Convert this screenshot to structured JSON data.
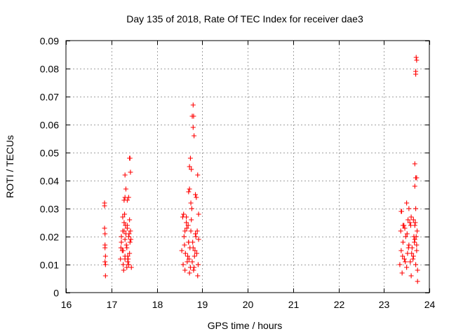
{
  "chart_data": {
    "type": "scatter",
    "title": "Day 135 of 2018, Rate Of TEC Index for receiver dae3",
    "xlabel": "GPS time / hours",
    "ylabel": "ROTI / TECUs",
    "xlim": [
      16,
      24
    ],
    "ylim": [
      0,
      0.09
    ],
    "xticks": [
      16,
      17,
      18,
      19,
      20,
      21,
      22,
      23,
      24
    ],
    "yticks": [
      0,
      0.01,
      0.02,
      0.03,
      0.04,
      0.05,
      0.06,
      0.07,
      0.08,
      0.09
    ],
    "ytick_labels": [
      "0",
      "0.01",
      "0.02",
      "0.03",
      "0.04",
      "0.05",
      "0.06",
      "0.07",
      "0.08",
      "0.09"
    ],
    "grid": true,
    "marker": "+",
    "color": "#ff0000",
    "series": [
      {
        "x": [
          16.85,
          16.85,
          16.85,
          16.86,
          16.86,
          16.86,
          16.86,
          16.87,
          16.87,
          16.87,
          17.2,
          17.22,
          17.24,
          17.25,
          17.26,
          17.28,
          17.3,
          17.3,
          17.32,
          17.34,
          17.35,
          17.36,
          17.38,
          17.4,
          17.41,
          17.42,
          17.44,
          17.25,
          17.27,
          17.3,
          17.33,
          17.35,
          17.38,
          17.4,
          17.22,
          17.26,
          17.31,
          17.36,
          17.43,
          17.29,
          17.34,
          17.39,
          17.21,
          17.28,
          17.37,
          17.28,
          17.3,
          17.32,
          17.35,
          17.38,
          17.4,
          17.41,
          17.42,
          17.3,
          17.29,
          18.55,
          18.58,
          18.6,
          18.62,
          18.65,
          18.68,
          18.7,
          18.72,
          18.75,
          18.78,
          18.8,
          18.82,
          18.85,
          18.88,
          18.9,
          18.92,
          18.57,
          18.61,
          18.66,
          18.71,
          18.76,
          18.81,
          18.86,
          18.91,
          18.63,
          18.69,
          18.74,
          18.79,
          18.84,
          18.89,
          18.59,
          18.67,
          18.73,
          18.83,
          18.7,
          18.72,
          18.74,
          18.76,
          18.78,
          18.8,
          18.8,
          18.82,
          18.81,
          18.72,
          18.75,
          18.77,
          18.85,
          18.87,
          18.9,
          18.92,
          18.62,
          18.65,
          18.7,
          23.35,
          23.38,
          23.4,
          23.42,
          23.45,
          23.48,
          23.5,
          23.52,
          23.55,
          23.58,
          23.6,
          23.62,
          23.65,
          23.68,
          23.7,
          23.72,
          23.74,
          23.37,
          23.41,
          23.44,
          23.47,
          23.51,
          23.54,
          23.57,
          23.61,
          23.64,
          23.67,
          23.71,
          23.39,
          23.46,
          23.53,
          23.59,
          23.66,
          23.73,
          23.38,
          23.42,
          23.5,
          23.55,
          23.6,
          23.65,
          23.68,
          23.7,
          23.68,
          23.72,
          23.7,
          23.7,
          23.72,
          23.71,
          23.7,
          23.69,
          23.68,
          23.72,
          23.74
        ],
        "y": [
          0.032,
          0.031,
          0.023,
          0.021,
          0.017,
          0.016,
          0.011,
          0.01,
          0.006,
          0.013,
          0.012,
          0.018,
          0.015,
          0.022,
          0.01,
          0.025,
          0.019,
          0.013,
          0.021,
          0.016,
          0.024,
          0.011,
          0.02,
          0.014,
          0.018,
          0.022,
          0.009,
          0.027,
          0.008,
          0.012,
          0.017,
          0.023,
          0.01,
          0.026,
          0.02,
          0.015,
          0.024,
          0.013,
          0.019,
          0.028,
          0.009,
          0.021,
          0.016,
          0.022,
          0.012,
          0.033,
          0.034,
          0.037,
          0.033,
          0.034,
          0.048,
          0.048,
          0.043,
          0.042,
          0.028,
          0.015,
          0.01,
          0.02,
          0.008,
          0.025,
          0.013,
          0.018,
          0.007,
          0.022,
          0.011,
          0.016,
          0.009,
          0.021,
          0.014,
          0.006,
          0.019,
          0.027,
          0.017,
          0.023,
          0.012,
          0.026,
          0.008,
          0.02,
          0.01,
          0.014,
          0.024,
          0.009,
          0.018,
          0.015,
          0.022,
          0.028,
          0.011,
          0.016,
          0.013,
          0.036,
          0.045,
          0.048,
          0.044,
          0.063,
          0.067,
          0.059,
          0.056,
          0.063,
          0.037,
          0.032,
          0.03,
          0.035,
          0.034,
          0.042,
          0.028,
          0.022,
          0.027,
          0.018,
          0.01,
          0.015,
          0.007,
          0.018,
          0.012,
          0.02,
          0.009,
          0.014,
          0.017,
          0.011,
          0.006,
          0.016,
          0.013,
          0.019,
          0.01,
          0.015,
          0.008,
          0.022,
          0.013,
          0.024,
          0.011,
          0.021,
          0.016,
          0.025,
          0.014,
          0.012,
          0.018,
          0.02,
          0.029,
          0.023,
          0.026,
          0.024,
          0.02,
          0.022,
          0.029,
          0.024,
          0.032,
          0.03,
          0.027,
          0.026,
          0.038,
          0.041,
          0.046,
          0.041,
          0.079,
          0.078,
          0.083,
          0.084,
          0.03,
          0.025,
          0.024,
          0.017,
          0.004
        ]
      }
    ]
  }
}
